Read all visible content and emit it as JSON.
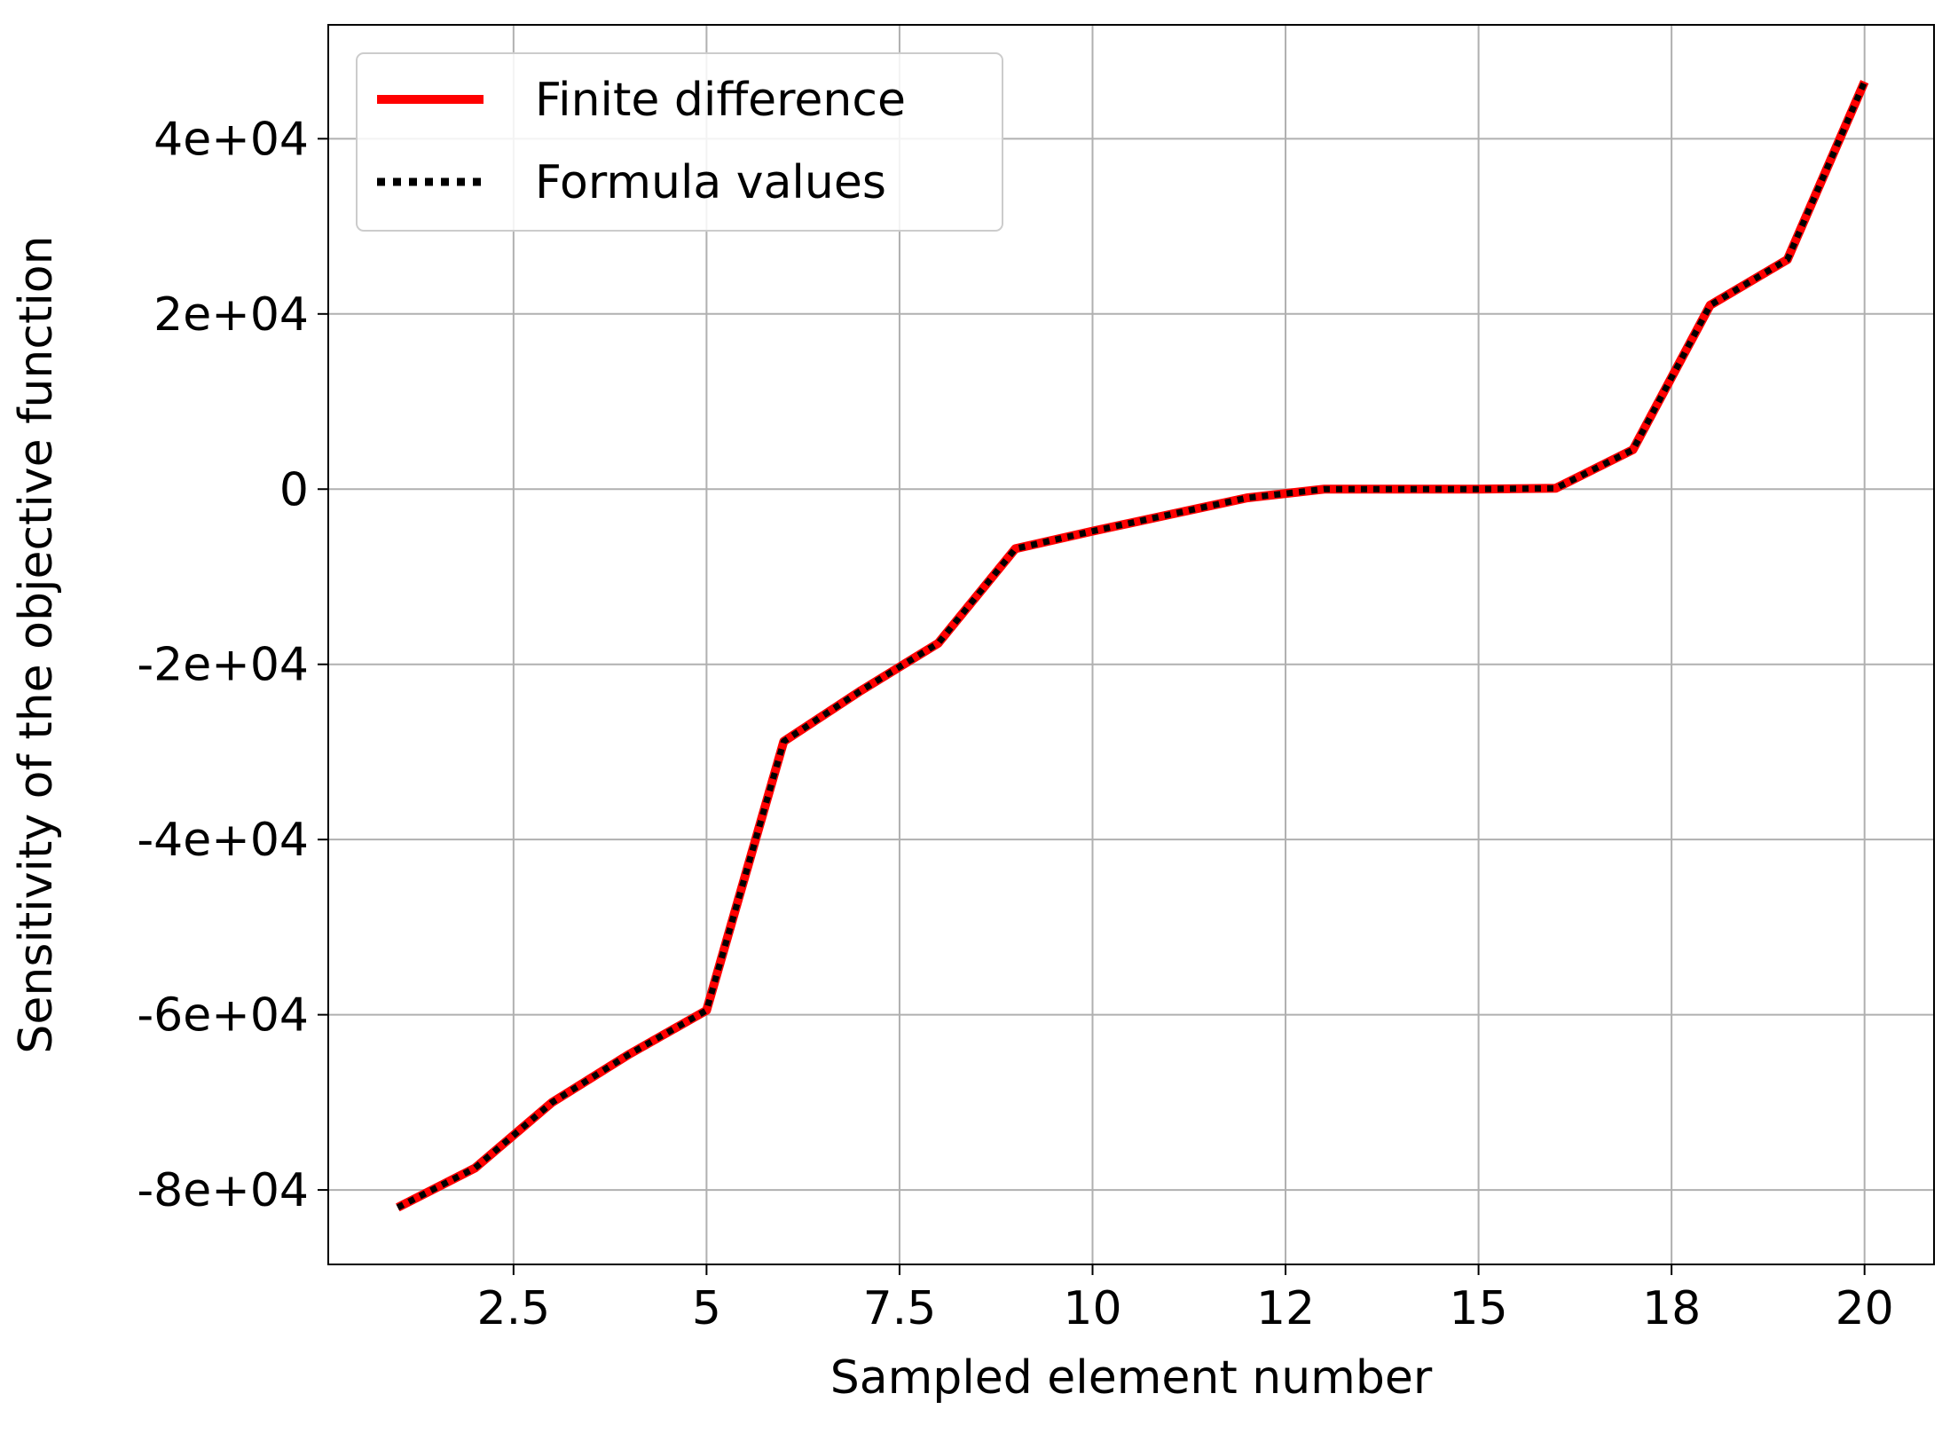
{
  "chart_data": {
    "type": "line",
    "xlabel": "Sampled element number",
    "ylabel": "Sensitivity of the objective function",
    "xlim": [
      0.1,
      20.9
    ],
    "ylim": [
      -88500,
      53000
    ],
    "x_ticks": [
      {
        "value": 2.5,
        "label": "2.5"
      },
      {
        "value": 5,
        "label": "5"
      },
      {
        "value": 7.5,
        "label": "7.5"
      },
      {
        "value": 10,
        "label": "10"
      },
      {
        "value": 12.5,
        "label": "12"
      },
      {
        "value": 15,
        "label": "15"
      },
      {
        "value": 17.5,
        "label": "18"
      },
      {
        "value": 20,
        "label": "20"
      }
    ],
    "y_ticks": [
      {
        "value": 40000,
        "label": "4e+04"
      },
      {
        "value": 20000,
        "label": "2e+04"
      },
      {
        "value": 0,
        "label": "0"
      },
      {
        "value": -20000,
        "label": "-2e+04"
      },
      {
        "value": -40000,
        "label": "-4e+04"
      },
      {
        "value": -60000,
        "label": "-6e+04"
      },
      {
        "value": -80000,
        "label": "-8e+04"
      }
    ],
    "grid": true,
    "legend_position": "upper-left",
    "series": [
      {
        "name": "Finite difference",
        "color": "#ff0000",
        "style": "solid",
        "x": [
          1,
          2,
          3,
          4,
          5,
          6,
          7,
          8,
          9,
          10,
          11,
          12,
          13,
          14,
          15,
          16,
          17,
          18,
          19,
          20
        ],
        "y": [
          -82000,
          -77500,
          -70000,
          -64500,
          -59500,
          -28800,
          -23000,
          -17600,
          -6800,
          -4800,
          -2900,
          -1000,
          0,
          0,
          0,
          100,
          4500,
          21000,
          26200,
          46500
        ]
      },
      {
        "name": "Formula values",
        "color": "#000000",
        "style": "dotted",
        "x": [
          1,
          2,
          3,
          4,
          5,
          6,
          7,
          8,
          9,
          10,
          11,
          12,
          13,
          14,
          15,
          16,
          17,
          18,
          19,
          20
        ],
        "y": [
          -82000,
          -77500,
          -70000,
          -64500,
          -59500,
          -28800,
          -23000,
          -17600,
          -6800,
          -4800,
          -2900,
          -1000,
          0,
          0,
          0,
          100,
          4500,
          21000,
          26200,
          46500
        ]
      }
    ]
  }
}
